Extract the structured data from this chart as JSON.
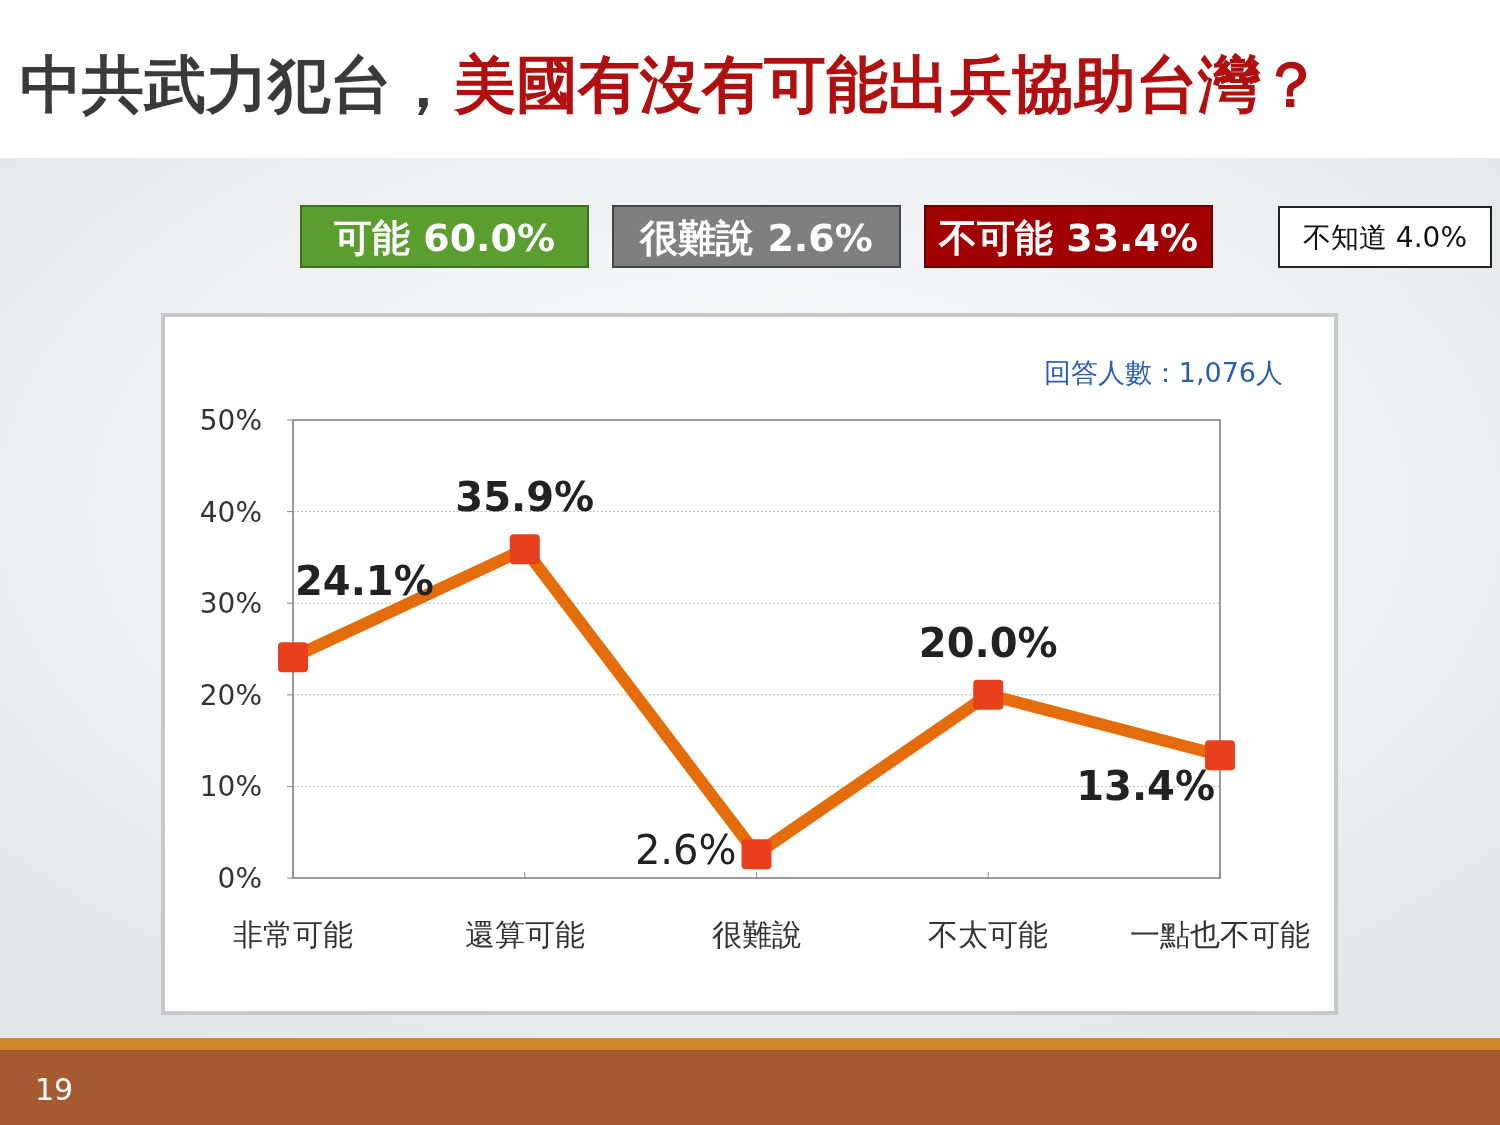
{
  "chart_data": {
    "type": "line",
    "title": "中共武力犯台，美國有沒有可能出兵協助台灣？",
    "categories": [
      "非常可能",
      "還算可能",
      "很難說",
      "不太可能",
      "一點也不可能"
    ],
    "values": [
      24.1,
      35.9,
      2.6,
      20.0,
      13.4
    ],
    "value_labels": [
      "24.1%",
      "35.9%",
      "2.6%",
      "20.0%",
      "13.4%"
    ],
    "color": "#e46c0a",
    "colors": [
      "#e8401c",
      "#e8401c",
      "#e8401c",
      "#e8401c",
      "#e8401c"
    ],
    "marker": "square",
    "line_style": "solid",
    "ylim": [
      0,
      50
    ],
    "yticks": [
      {
        "value": 0,
        "label": "0%"
      },
      {
        "value": 10,
        "label": "10%"
      },
      {
        "value": 20,
        "label": "20%"
      },
      {
        "value": 30,
        "label": "30%"
      },
      {
        "value": 40,
        "label": "40%"
      },
      {
        "value": 50,
        "label": "50%"
      }
    ],
    "grid": "y",
    "annotations": [
      "可能 60.0%",
      "很難說 2.6%",
      "不可能 33.4%",
      "不知道 4.0%",
      "回答人數：1,076人",
      "19"
    ]
  }
}
